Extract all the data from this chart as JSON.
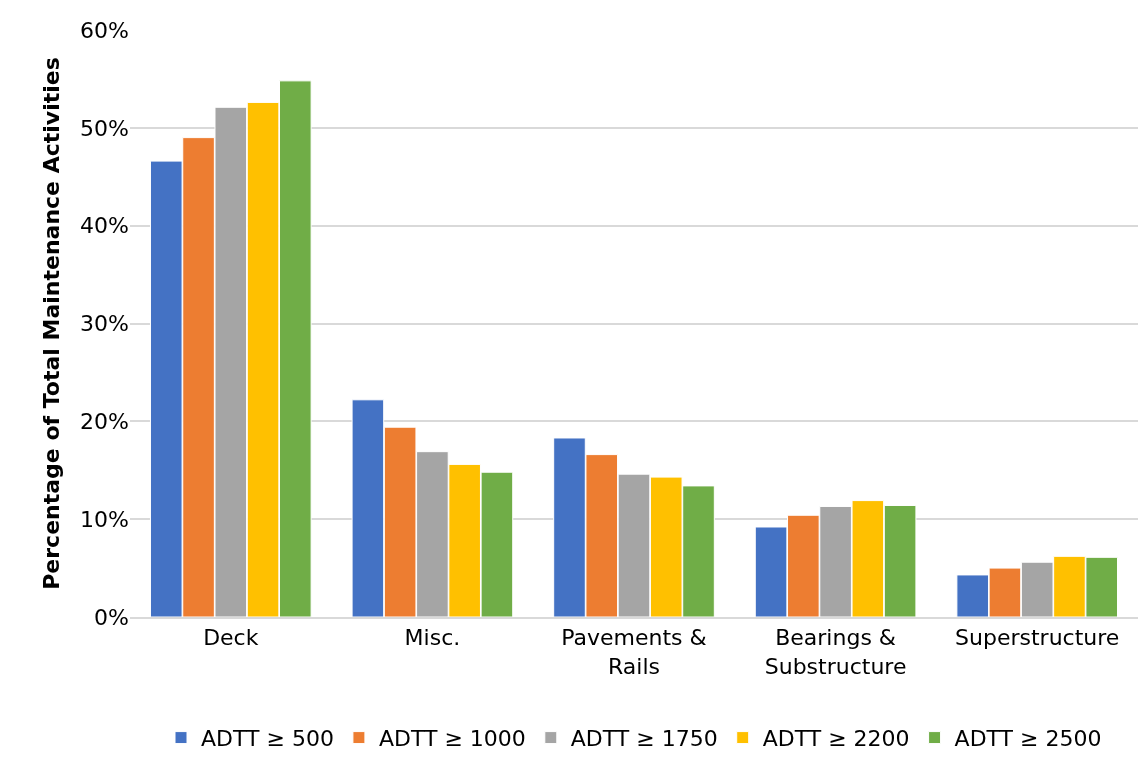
{
  "chart_data": {
    "type": "bar",
    "categories": [
      "Deck",
      "Misc.",
      "Pavements & Rails",
      "Bearings & Substructure",
      "Superstructure"
    ],
    "ylabel": "Percentage of Total Maintenance Activities",
    "series": [
      {
        "name": "ADTT ≥ 500",
        "color": "#4472c4",
        "values": [
          46.6,
          22.2,
          18.3,
          9.2,
          4.3
        ]
      },
      {
        "name": "ADTT ≥ 1000",
        "color": "#ed7d31",
        "values": [
          49.0,
          19.4,
          16.6,
          10.4,
          5.0
        ]
      },
      {
        "name": "ADTT ≥ 1750",
        "color": "#a5a5a5",
        "values": [
          52.1,
          16.9,
          14.6,
          11.3,
          5.6
        ]
      },
      {
        "name": "ADTT ≥ 2200",
        "color": "#ffc000",
        "values": [
          52.6,
          15.6,
          14.3,
          11.9,
          6.2
        ]
      },
      {
        "name": "ADTT ≥ 2500",
        "color": "#70ad47",
        "values": [
          54.8,
          14.8,
          13.4,
          11.4,
          6.1
        ]
      }
    ],
    "ylim": [
      0,
      60
    ],
    "yticks": [
      {
        "value": 0,
        "label": "0%"
      },
      {
        "value": 10,
        "label": "10%"
      },
      {
        "value": 20,
        "label": "20%"
      },
      {
        "value": 30,
        "label": "30%"
      },
      {
        "value": 40,
        "label": "40%"
      },
      {
        "value": 50,
        "label": "50%"
      },
      {
        "value": 60,
        "label": "60%"
      }
    ],
    "grid": "y",
    "legend": "bottom"
  }
}
